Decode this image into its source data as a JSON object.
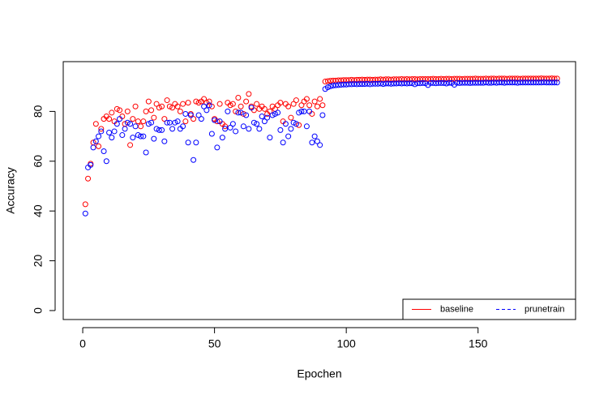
{
  "chart_data": {
    "type": "scatter",
    "xlabel": "Epochen",
    "ylabel": "Accuracy",
    "xlim": [
      -7.4,
      187
    ],
    "ylim": [
      -3.6,
      100
    ],
    "xticks": [
      0,
      50,
      100,
      150
    ],
    "yticks": [
      0,
      20,
      40,
      60,
      80
    ],
    "legend": "bottomright",
    "x": [
      1,
      2,
      3,
      4,
      5,
      6,
      7,
      8,
      9,
      10,
      11,
      12,
      13,
      14,
      15,
      16,
      17,
      18,
      19,
      20,
      21,
      22,
      23,
      24,
      25,
      26,
      27,
      28,
      29,
      30,
      31,
      32,
      33,
      34,
      35,
      36,
      37,
      38,
      39,
      40,
      41,
      42,
      43,
      44,
      45,
      46,
      47,
      48,
      49,
      50,
      51,
      52,
      53,
      54,
      55,
      56,
      57,
      58,
      59,
      60,
      61,
      62,
      63,
      64,
      65,
      66,
      67,
      68,
      69,
      70,
      71,
      72,
      73,
      74,
      75,
      76,
      77,
      78,
      79,
      80,
      81,
      82,
      83,
      84,
      85,
      86,
      87,
      88,
      89,
      90,
      91,
      92,
      93,
      94,
      95,
      96,
      97,
      98,
      99,
      100,
      101,
      102,
      103,
      104,
      105,
      106,
      107,
      108,
      109,
      110,
      111,
      112,
      113,
      114,
      115,
      116,
      117,
      118,
      119,
      120,
      121,
      122,
      123,
      124,
      125,
      126,
      127,
      128,
      129,
      130,
      131,
      132,
      133,
      134,
      135,
      136,
      137,
      138,
      139,
      140,
      141,
      142,
      143,
      144,
      145,
      146,
      147,
      148,
      149,
      150,
      151,
      152,
      153,
      154,
      155,
      156,
      157,
      158,
      159,
      160,
      161,
      162,
      163,
      164,
      165,
      166,
      167,
      168,
      169,
      170,
      171,
      172,
      173,
      174,
      175,
      176,
      177,
      178,
      179,
      180
    ],
    "series": [
      {
        "name": "baseline",
        "color": "#ff0000",
        "dash": "solid",
        "values": [
          42.7,
          53,
          59,
          67.5,
          75,
          66,
          73,
          77,
          78,
          77,
          79.5,
          76,
          81,
          80.5,
          78,
          75,
          80,
          66.5,
          77,
          82,
          76,
          74,
          76,
          80,
          84,
          80.5,
          77.5,
          83,
          81.5,
          82,
          77,
          84.5,
          82,
          81.5,
          83,
          82,
          80,
          83,
          76,
          83.5,
          79,
          77,
          84,
          83.5,
          84,
          85,
          83.5,
          84,
          82,
          77,
          76,
          83,
          75,
          74,
          83.5,
          82.5,
          83,
          80,
          85.5,
          82,
          79,
          84,
          87,
          82,
          80.5,
          83,
          81,
          82,
          81,
          79,
          80,
          82,
          81,
          82.5,
          83.5,
          76,
          83,
          82,
          77.5,
          83,
          84.5,
          74.5,
          82.5,
          84,
          85,
          82.5,
          79,
          84,
          82,
          85,
          82.5,
          92.0,
          92.2,
          92.3,
          92.4,
          92.4,
          92.5,
          92.5,
          92.6,
          92.6,
          92.6,
          92.7,
          92.6,
          92.7,
          92.7,
          92.8,
          92.7,
          92.8,
          92.8,
          92.7,
          92.8,
          92.8,
          92.9,
          92.8,
          92.9,
          92.9,
          92.8,
          92.9,
          92.9,
          92.9,
          93.0,
          92.9,
          93.0,
          92.9,
          93.0,
          93.0,
          92.9,
          93.0,
          93.0,
          93.0,
          93.0,
          93.0,
          93.1,
          93.0,
          93.0,
          93.1,
          93.0,
          93.1,
          93.1,
          93.0,
          93.1,
          93.1,
          93.1,
          93.0,
          93.1,
          93.1,
          93.1,
          93.1,
          93.2,
          93.1,
          93.1,
          93.1,
          93.2,
          93.1,
          93.2,
          93.2,
          93.1,
          93.2,
          93.2,
          93.2,
          93.1,
          93.2,
          93.2,
          93.2,
          93.2,
          93.1,
          93.2,
          93.2,
          93.2,
          93.2,
          93.2,
          93.2,
          93.2,
          93.3,
          93.2,
          93.2,
          93.2,
          93.3,
          93.2,
          93.2
        ]
      },
      {
        "name": "prunetrain",
        "color": "#0000ff",
        "dash": "dashed",
        "values": [
          39,
          57.5,
          58.5,
          65.5,
          68,
          70,
          72,
          64,
          60,
          71.5,
          69.5,
          72,
          75,
          77,
          70.5,
          73,
          75.5,
          75,
          69.5,
          74,
          70.5,
          70,
          70,
          63.5,
          75,
          75.5,
          69,
          73,
          72.5,
          72.5,
          68,
          75.5,
          75.5,
          73,
          75.5,
          76,
          73,
          74,
          79,
          67.5,
          78.5,
          60.5,
          67.5,
          78.5,
          77,
          82,
          80.5,
          82.5,
          71,
          76.5,
          65.5,
          76,
          69.5,
          73,
          80,
          73.5,
          75,
          72,
          79.5,
          79.5,
          74,
          78.5,
          73,
          81.5,
          75.5,
          75,
          73,
          78,
          76,
          77.5,
          69.5,
          78.5,
          79,
          79.5,
          72.5,
          67.5,
          75,
          70,
          73,
          75.5,
          75,
          79.5,
          80,
          80,
          74,
          80,
          67.5,
          70,
          68,
          66.5,
          78.5,
          89.0,
          89.7,
          90.1,
          90.4,
          90.5,
          90.6,
          90.7,
          90.8,
          90.8,
          90.9,
          90.9,
          91.0,
          90.9,
          91.0,
          91.0,
          91.0,
          91.1,
          90.9,
          91.1,
          91.1,
          91.1,
          91.2,
          91.0,
          91.2,
          91.2,
          91.1,
          91.2,
          91.2,
          91.3,
          91.2,
          91.3,
          91.2,
          91.3,
          91.3,
          90.9,
          91.3,
          91.3,
          91.4,
          91.3,
          90.6,
          91.4,
          91.4,
          91.3,
          91.4,
          91.4,
          91.4,
          91.2,
          91.5,
          91.4,
          90.7,
          91.5,
          91.4,
          91.5,
          91.5,
          91.5,
          91.4,
          91.5,
          91.5,
          91.5,
          91.5,
          91.5,
          91.6,
          91.5,
          91.5,
          91.6,
          91.5,
          91.6,
          91.6,
          91.5,
          91.6,
          91.6,
          91.6,
          91.6,
          91.5,
          91.6,
          91.6,
          91.6,
          91.6,
          91.6,
          91.6,
          91.6,
          91.6,
          91.6,
          91.7,
          91.6,
          91.6,
          91.6,
          91.6,
          91.6
        ]
      }
    ]
  }
}
